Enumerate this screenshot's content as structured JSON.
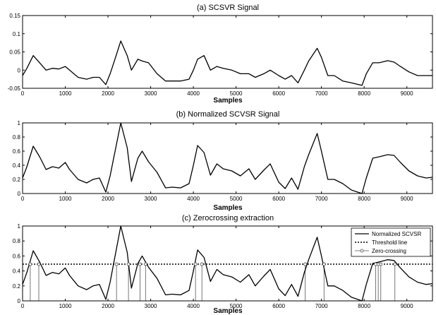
{
  "chart_data": [
    {
      "type": "line",
      "title": "(a) SCSVR Signal",
      "xlabel": "Samples",
      "ylabel": "",
      "xlim": [
        0,
        9600
      ],
      "ylim": [
        -0.05,
        0.15
      ],
      "xticks": [
        "0",
        "1000",
        "2000",
        "3000",
        "4000",
        "5000",
        "6000",
        "7000",
        "8000",
        "9000"
      ],
      "yticks": [
        "-0.05",
        "0",
        "0.05",
        "0.1",
        "0.15"
      ],
      "grid": false,
      "series": [
        {
          "x": [
            0,
            100,
            250,
            400,
            550,
            700,
            850,
            1000,
            1100,
            1300,
            1500,
            1650,
            1800,
            1950,
            2050,
            2150,
            2300,
            2450,
            2550,
            2700,
            2800,
            2950,
            3150,
            3350,
            3500,
            3700,
            3900,
            4000,
            4100,
            4250,
            4400,
            4550,
            4700,
            4900,
            5100,
            5300,
            5450,
            5650,
            5800,
            6000,
            6150,
            6300,
            6450,
            6600,
            6700,
            6900,
            7000,
            7150,
            7300,
            7500,
            7700,
            7950,
            8050,
            8200,
            8350,
            8550,
            8700,
            8850,
            9050,
            9250,
            9450,
            9600
          ],
          "y": [
            -0.015,
            0.005,
            0.04,
            0.02,
            0.0,
            0.005,
            0.003,
            0.01,
            0.0,
            -0.02,
            -0.025,
            -0.02,
            -0.02,
            -0.04,
            -0.01,
            0.025,
            0.08,
            0.04,
            0.0,
            0.03,
            0.025,
            0.02,
            -0.01,
            -0.03,
            -0.03,
            -0.03,
            -0.025,
            0.0,
            0.03,
            0.04,
            0.0,
            0.01,
            0.005,
            0.0,
            -0.01,
            -0.01,
            -0.02,
            -0.01,
            0.0,
            -0.015,
            -0.025,
            -0.015,
            -0.035,
            0.0,
            0.025,
            0.06,
            0.035,
            -0.015,
            -0.015,
            -0.03,
            -0.035,
            -0.042,
            -0.01,
            0.02,
            0.02,
            0.026,
            0.022,
            0.01,
            -0.005,
            -0.015,
            -0.015,
            -0.015
          ]
        }
      ]
    },
    {
      "type": "line",
      "title": "(b) Normalized SCVSR Signal",
      "xlabel": "Samples",
      "ylabel": "",
      "xlim": [
        0,
        9600
      ],
      "ylim": [
        0,
        1
      ],
      "xticks": [
        "0",
        "1000",
        "2000",
        "3000",
        "4000",
        "5000",
        "6000",
        "7000",
        "8000",
        "9000"
      ],
      "yticks": [
        "0",
        "0.2",
        "0.4",
        "0.6",
        "0.8",
        "1"
      ],
      "grid": false,
      "series": [
        {
          "x": [
            0,
            100,
            250,
            400,
            550,
            700,
            850,
            1000,
            1100,
            1300,
            1500,
            1650,
            1800,
            1950,
            2050,
            2150,
            2300,
            2450,
            2550,
            2700,
            2800,
            2950,
            3150,
            3350,
            3500,
            3700,
            3900,
            4000,
            4100,
            4250,
            4400,
            4550,
            4700,
            4900,
            5100,
            5300,
            5450,
            5650,
            5800,
            6000,
            6150,
            6300,
            6450,
            6600,
            6700,
            6900,
            7000,
            7150,
            7300,
            7500,
            7700,
            7950,
            8050,
            8200,
            8350,
            8550,
            8700,
            8850,
            9050,
            9250,
            9450,
            9600
          ],
          "y": [
            0.22,
            0.38,
            0.67,
            0.52,
            0.34,
            0.38,
            0.36,
            0.44,
            0.34,
            0.2,
            0.15,
            0.2,
            0.22,
            0.02,
            0.25,
            0.55,
            1.0,
            0.65,
            0.17,
            0.5,
            0.6,
            0.45,
            0.3,
            0.08,
            0.09,
            0.08,
            0.14,
            0.4,
            0.68,
            0.58,
            0.26,
            0.42,
            0.35,
            0.32,
            0.25,
            0.35,
            0.2,
            0.33,
            0.42,
            0.16,
            0.07,
            0.22,
            0.06,
            0.38,
            0.55,
            0.85,
            0.6,
            0.2,
            0.2,
            0.14,
            0.05,
            0.0,
            0.22,
            0.5,
            0.52,
            0.55,
            0.54,
            0.44,
            0.32,
            0.25,
            0.22,
            0.23
          ]
        }
      ]
    },
    {
      "type": "line",
      "title": "(c) Zerocrossing extraction",
      "xlabel": "Samples",
      "ylabel": "",
      "xlim": [
        0,
        9600
      ],
      "ylim": [
        0,
        1
      ],
      "xticks": [
        "0",
        "1000",
        "2000",
        "3000",
        "4000",
        "5000",
        "6000",
        "7000",
        "8000",
        "9000"
      ],
      "yticks": [
        "0",
        "0.2",
        "0.4",
        "0.6",
        "0.8",
        "1"
      ],
      "grid": false,
      "legend": {
        "position": "top-right",
        "entries": [
          "Normalized SCVSR",
          "Threshold line",
          "Zero-crossing"
        ]
      },
      "threshold": 0.49,
      "zero_crossings": [
        180,
        380,
        2200,
        2480,
        2750,
        2880,
        4050,
        4200,
        6620,
        7060,
        8270,
        8330,
        8390,
        8720
      ],
      "series": [
        {
          "name": "Normalized SCVSR",
          "x": [
            0,
            100,
            250,
            400,
            550,
            700,
            850,
            1000,
            1100,
            1300,
            1500,
            1650,
            1800,
            1950,
            2050,
            2150,
            2300,
            2450,
            2550,
            2700,
            2800,
            2950,
            3150,
            3350,
            3500,
            3700,
            3900,
            4000,
            4100,
            4250,
            4400,
            4550,
            4700,
            4900,
            5100,
            5300,
            5450,
            5650,
            5800,
            6000,
            6150,
            6300,
            6450,
            6600,
            6700,
            6900,
            7000,
            7150,
            7300,
            7500,
            7700,
            7950,
            8050,
            8200,
            8350,
            8550,
            8700,
            8850,
            9050,
            9250,
            9450,
            9600
          ],
          "y": [
            0.22,
            0.38,
            0.67,
            0.52,
            0.34,
            0.38,
            0.36,
            0.44,
            0.34,
            0.2,
            0.15,
            0.2,
            0.22,
            0.02,
            0.25,
            0.55,
            1.0,
            0.65,
            0.17,
            0.5,
            0.6,
            0.45,
            0.3,
            0.08,
            0.09,
            0.08,
            0.14,
            0.4,
            0.68,
            0.58,
            0.26,
            0.42,
            0.35,
            0.32,
            0.25,
            0.35,
            0.2,
            0.33,
            0.42,
            0.16,
            0.07,
            0.22,
            0.06,
            0.38,
            0.55,
            0.85,
            0.6,
            0.2,
            0.2,
            0.14,
            0.05,
            0.0,
            0.22,
            0.5,
            0.52,
            0.55,
            0.54,
            0.44,
            0.32,
            0.25,
            0.22,
            0.23
          ]
        },
        {
          "name": "Threshold line"
        },
        {
          "name": "Zero-crossing"
        }
      ]
    }
  ]
}
